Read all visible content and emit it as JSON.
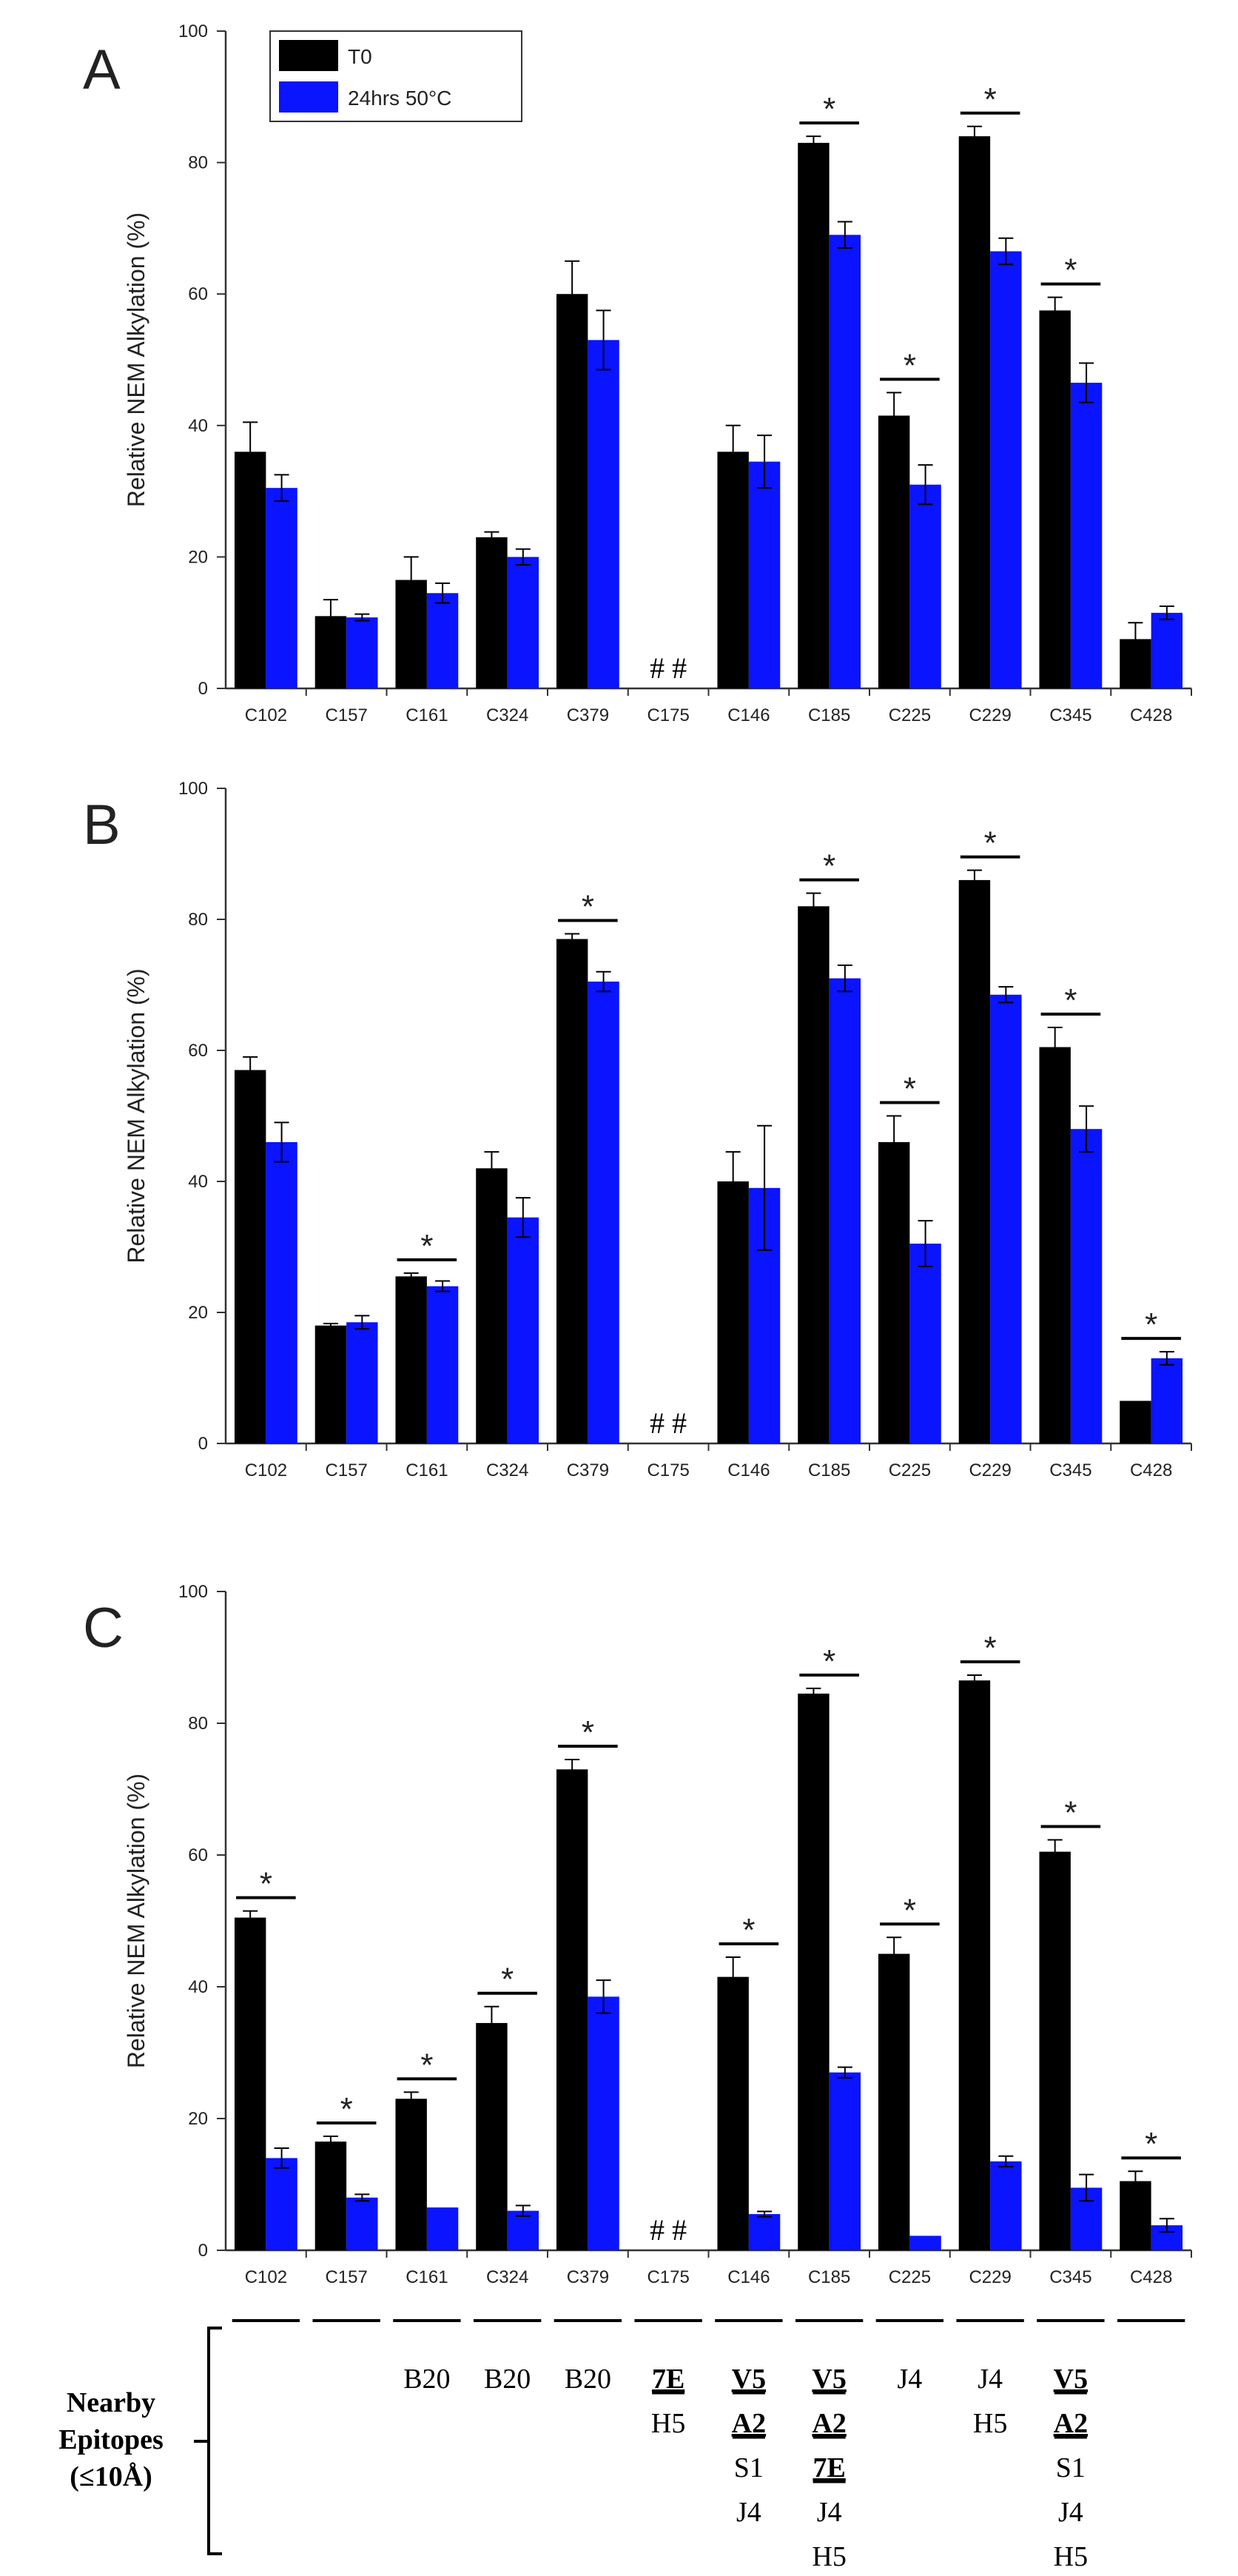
{
  "colors": {
    "t0": "#000000",
    "heated": "#0a14ff",
    "axis": "#333333",
    "sig": "#000000"
  },
  "legend": {
    "t0": "T0",
    "heated": "24hrs 50°C"
  },
  "chart_data": [
    {
      "panel": "A",
      "type": "bar",
      "ylabel": "Relative NEM Alkylation (%)",
      "ylim": [
        0,
        100
      ],
      "yticks": [
        "0",
        "20",
        "40",
        "60",
        "80",
        "100"
      ],
      "categories": [
        "C102",
        "C157",
        "C161",
        "C324",
        "C379",
        "C175",
        "C146",
        "C185",
        "C225",
        "C229",
        "C345",
        "C428"
      ],
      "series": [
        {
          "name": "T0",
          "values": [
            36,
            11,
            16.5,
            23,
            60,
            null,
            36,
            83,
            41.5,
            84,
            57.5,
            7.5
          ],
          "errors": [
            4.5,
            2.5,
            3.5,
            0.8,
            5,
            null,
            4,
            1,
            3.5,
            1.5,
            2,
            2.5
          ]
        },
        {
          "name": "24hrs 50°C",
          "values": [
            30.5,
            10.8,
            14.5,
            20,
            53,
            null,
            34.5,
            69,
            31,
            66.5,
            46.5,
            11.5
          ],
          "errors": [
            2,
            0.5,
            1.5,
            1.2,
            4.5,
            null,
            4,
            2,
            3,
            2,
            3,
            1
          ]
        }
      ],
      "missing_label": "##",
      "significance_label": "*",
      "significant": [
        "C185",
        "C225",
        "C229",
        "C345"
      ]
    },
    {
      "panel": "B",
      "type": "bar",
      "ylabel": "Relative NEM Alkylation (%)",
      "ylim": [
        0,
        100
      ],
      "yticks": [
        "0",
        "20",
        "40",
        "60",
        "80",
        "100"
      ],
      "categories": [
        "C102",
        "C157",
        "C161",
        "C324",
        "C379",
        "C175",
        "C146",
        "C185",
        "C225",
        "C229",
        "C345",
        "C428"
      ],
      "series": [
        {
          "name": "T0",
          "values": [
            57,
            18,
            25.5,
            42,
            77,
            null,
            40,
            82,
            46,
            86,
            60.5,
            6.5
          ],
          "errors": [
            2,
            0.3,
            0.5,
            2.5,
            0.8,
            null,
            4.5,
            2,
            4,
            1.5,
            3,
            0
          ]
        },
        {
          "name": "24hrs 50°C",
          "values": [
            46,
            18.5,
            24,
            34.5,
            70.5,
            null,
            39,
            71,
            30.5,
            68.5,
            48,
            13
          ],
          "errors": [
            3,
            1,
            0.8,
            3,
            1.5,
            null,
            9.5,
            2,
            3.5,
            1.2,
            3.5,
            1
          ]
        }
      ],
      "missing_label": "##",
      "significance_label": "*",
      "significant": [
        "C161",
        "C379",
        "C185",
        "C225",
        "C229",
        "C345",
        "C428"
      ]
    },
    {
      "panel": "C",
      "type": "bar",
      "ylabel": "Relative NEM Alkylation (%)",
      "ylim": [
        0,
        100
      ],
      "yticks": [
        "0",
        "20",
        "40",
        "60",
        "80",
        "100"
      ],
      "categories": [
        "C102",
        "C157",
        "C161",
        "C324",
        "C379",
        "C175",
        "C146",
        "C185",
        "C225",
        "C229",
        "C345",
        "C428"
      ],
      "series": [
        {
          "name": "T0",
          "values": [
            50.5,
            16.5,
            23,
            34.5,
            73,
            null,
            41.5,
            84.5,
            45,
            86.5,
            60.5,
            10.5
          ],
          "errors": [
            1,
            0.8,
            1,
            2.5,
            1.5,
            null,
            3,
            0.8,
            2.5,
            0.8,
            1.8,
            1.5
          ]
        },
        {
          "name": "24hrs 50°C",
          "values": [
            14,
            8,
            6.5,
            6,
            38.5,
            null,
            5.5,
            27,
            2.2,
            13.5,
            9.5,
            3.8
          ],
          "errors": [
            1.5,
            0.5,
            0,
            0.8,
            2.5,
            null,
            0.4,
            0.8,
            0,
            0.8,
            2,
            1
          ]
        }
      ],
      "missing_label": "##",
      "significance_label": "*",
      "significant": [
        "C102",
        "C157",
        "C161",
        "C324",
        "C379",
        "C146",
        "C185",
        "C225",
        "C229",
        "C345",
        "C428"
      ]
    }
  ],
  "epitopes": {
    "title_line1": "Nearby",
    "title_line2": "Epitopes",
    "title_line3": "(≤10Å)",
    "columns": [
      [],
      [],
      [
        {
          "t": "B20",
          "u": false
        }
      ],
      [
        {
          "t": "B20",
          "u": false
        }
      ],
      [
        {
          "t": "B20",
          "u": false
        }
      ],
      [
        {
          "t": "7E",
          "u": true
        },
        {
          "t": "H5",
          "u": false
        }
      ],
      [
        {
          "t": "V5",
          "u": true
        },
        {
          "t": "A2",
          "u": true
        },
        {
          "t": "S1",
          "u": false
        },
        {
          "t": "J4",
          "u": false
        }
      ],
      [
        {
          "t": "V5",
          "u": true
        },
        {
          "t": "A2",
          "u": true
        },
        {
          "t": "7E",
          "u": true
        },
        {
          "t": "J4",
          "u": false
        },
        {
          "t": "H5",
          "u": false
        }
      ],
      [
        {
          "t": "J4",
          "u": false
        }
      ],
      [
        {
          "t": "J4",
          "u": false
        },
        {
          "t": "H5",
          "u": false
        }
      ],
      [
        {
          "t": "V5",
          "u": true
        },
        {
          "t": "A2",
          "u": true
        },
        {
          "t": "S1",
          "u": false
        },
        {
          "t": "J4",
          "u": false
        },
        {
          "t": "H5",
          "u": false
        }
      ],
      []
    ]
  }
}
